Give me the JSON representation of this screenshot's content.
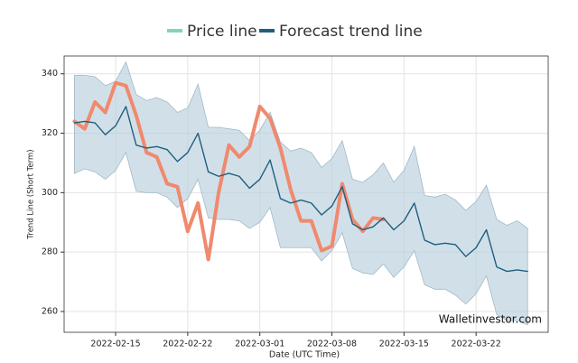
{
  "chart_data": {
    "type": "line",
    "xlabel": "Date (UTC Time)",
    "ylabel": "Trend Line (Short Term)",
    "annotation": "Walletinvestor.com",
    "x": [
      "2022-02-11",
      "2022-02-12",
      "2022-02-13",
      "2022-02-14",
      "2022-02-15",
      "2022-02-16",
      "2022-02-17",
      "2022-02-18",
      "2022-02-19",
      "2022-02-20",
      "2022-02-21",
      "2022-02-22",
      "2022-02-23",
      "2022-02-24",
      "2022-02-25",
      "2022-02-26",
      "2022-02-27",
      "2022-02-28",
      "2022-03-01",
      "2022-03-02",
      "2022-03-03",
      "2022-03-04",
      "2022-03-05",
      "2022-03-06",
      "2022-03-07",
      "2022-03-08",
      "2022-03-09",
      "2022-03-10",
      "2022-03-11",
      "2022-03-12",
      "2022-03-13",
      "2022-03-14",
      "2022-03-15",
      "2022-03-16",
      "2022-03-17",
      "2022-03-18",
      "2022-03-19",
      "2022-03-20",
      "2022-03-21",
      "2022-03-22",
      "2022-03-23",
      "2022-03-24",
      "2022-03-25",
      "2022-03-26",
      "2022-03-27"
    ],
    "series": [
      {
        "name": "Price line",
        "color": "#f0896e",
        "legend_color": "#7fd6b9",
        "values": [
          324,
          321.5,
          330.5,
          327,
          337,
          336,
          326,
          313.5,
          312,
          303,
          302,
          287,
          296.5,
          277.5,
          300,
          316,
          312,
          315.5,
          329,
          325,
          315,
          301,
          290.5,
          290.5,
          280.5,
          282,
          303,
          291,
          287,
          291.5,
          291,
          null,
          null,
          null,
          null,
          null,
          null,
          null,
          null,
          null,
          null,
          null,
          null,
          null,
          null
        ]
      },
      {
        "name": "Forecast trend line",
        "color": "#1f5f80",
        "legend_color": "#1f5f80",
        "values": [
          323.5,
          324,
          323.5,
          319.5,
          322.5,
          329,
          316,
          315,
          315.5,
          314.5,
          310.5,
          313.5,
          320,
          307,
          305.5,
          306.5,
          305.5,
          301.5,
          304.5,
          311,
          298,
          296.5,
          297.5,
          296.5,
          292.5,
          295.5,
          302,
          289.5,
          287.5,
          288.5,
          291.5,
          287.5,
          290.5,
          296.5,
          284,
          282.5,
          283,
          282.5,
          278.5,
          281.5,
          287.5,
          275,
          273.5,
          274,
          273.5
        ]
      }
    ],
    "band": {
      "color": "#b9cfdb",
      "upper": [
        339.5,
        339.5,
        339,
        336,
        337.5,
        344,
        333,
        331,
        332,
        330.5,
        327,
        328.5,
        336.5,
        322,
        322,
        321.5,
        321,
        317.5,
        321,
        327,
        317,
        314,
        315,
        313.5,
        308.5,
        311.5,
        317.5,
        304.5,
        303.5,
        306,
        310,
        303.5,
        307.5,
        315.5,
        299,
        298.5,
        299.5,
        297.5,
        294,
        297,
        302.5,
        291,
        289,
        290.5,
        288
      ],
      "lower": [
        306.5,
        308,
        307,
        304.5,
        307.5,
        313.5,
        300.5,
        300,
        300,
        298.5,
        295,
        298,
        304.5,
        291.5,
        291,
        291,
        290.5,
        288,
        290,
        295,
        281.5,
        281.5,
        281.5,
        281.5,
        277,
        280.5,
        286.5,
        274.5,
        273,
        272.5,
        276,
        271.5,
        275,
        280.5,
        269,
        267.5,
        267.5,
        265.5,
        262.5,
        266,
        272,
        259,
        257,
        257,
        255.5
      ]
    },
    "xlim": [
      "2022-02-10",
      "2022-03-29"
    ],
    "xticks": [
      "2022-02-15",
      "2022-02-22",
      "2022-03-01",
      "2022-03-08",
      "2022-03-15",
      "2022-03-22"
    ],
    "ylim": [
      253,
      346
    ],
    "yticks": [
      260,
      280,
      300,
      320,
      340
    ],
    "grid": true
  }
}
